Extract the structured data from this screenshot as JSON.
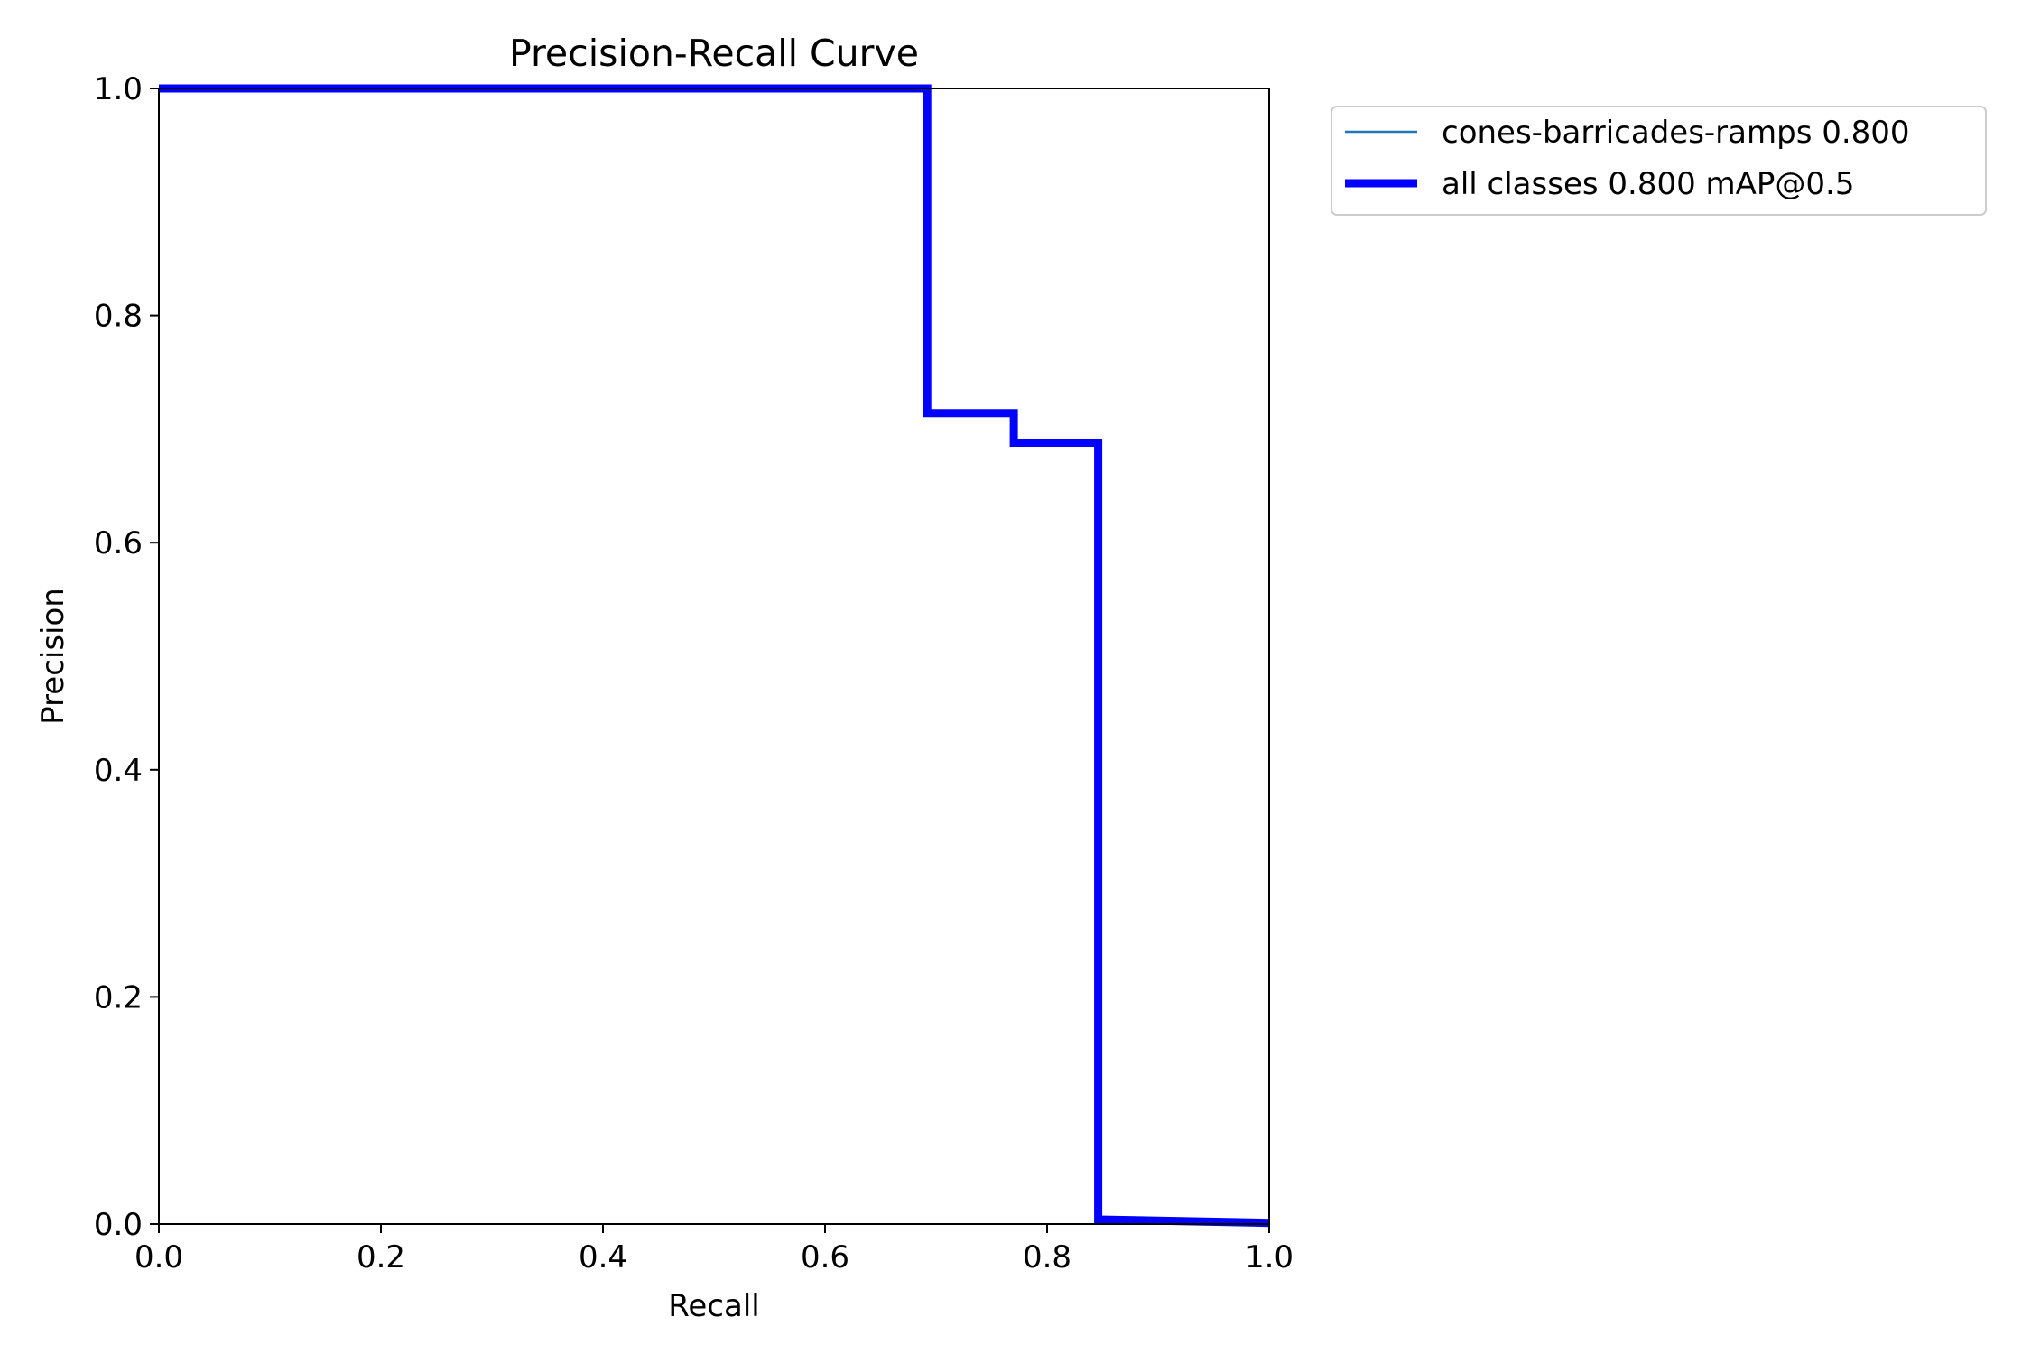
{
  "chart_data": {
    "type": "line",
    "title": "Precision-Recall Curve",
    "xlabel": "Recall",
    "ylabel": "Precision",
    "xlim": [
      0.0,
      1.0
    ],
    "ylim": [
      0.0,
      1.0
    ],
    "xticks": [
      "0.0",
      "0.2",
      "0.4",
      "0.6",
      "0.8",
      "1.0"
    ],
    "yticks": [
      "0.0",
      "0.2",
      "0.4",
      "0.6",
      "0.8",
      "1.0"
    ],
    "grid": false,
    "legend_position": "outside top-right",
    "series": [
      {
        "name": "cones-barricades-ramps 0.800",
        "color": "#1f77b4",
        "line_style": "thin",
        "x": [
          0.0,
          0.692,
          0.692,
          0.77,
          0.77,
          0.846,
          0.846,
          1.0
        ],
        "y": [
          1.0,
          1.0,
          0.714,
          0.714,
          0.688,
          0.688,
          0.004,
          0.001
        ]
      },
      {
        "name": "all classes 0.800 mAP@0.5",
        "color": "#0000ff",
        "line_style": "thick",
        "x": [
          0.0,
          0.692,
          0.692,
          0.77,
          0.77,
          0.846,
          0.846,
          1.0
        ],
        "y": [
          1.0,
          1.0,
          0.714,
          0.714,
          0.688,
          0.688,
          0.004,
          0.001
        ]
      }
    ]
  }
}
